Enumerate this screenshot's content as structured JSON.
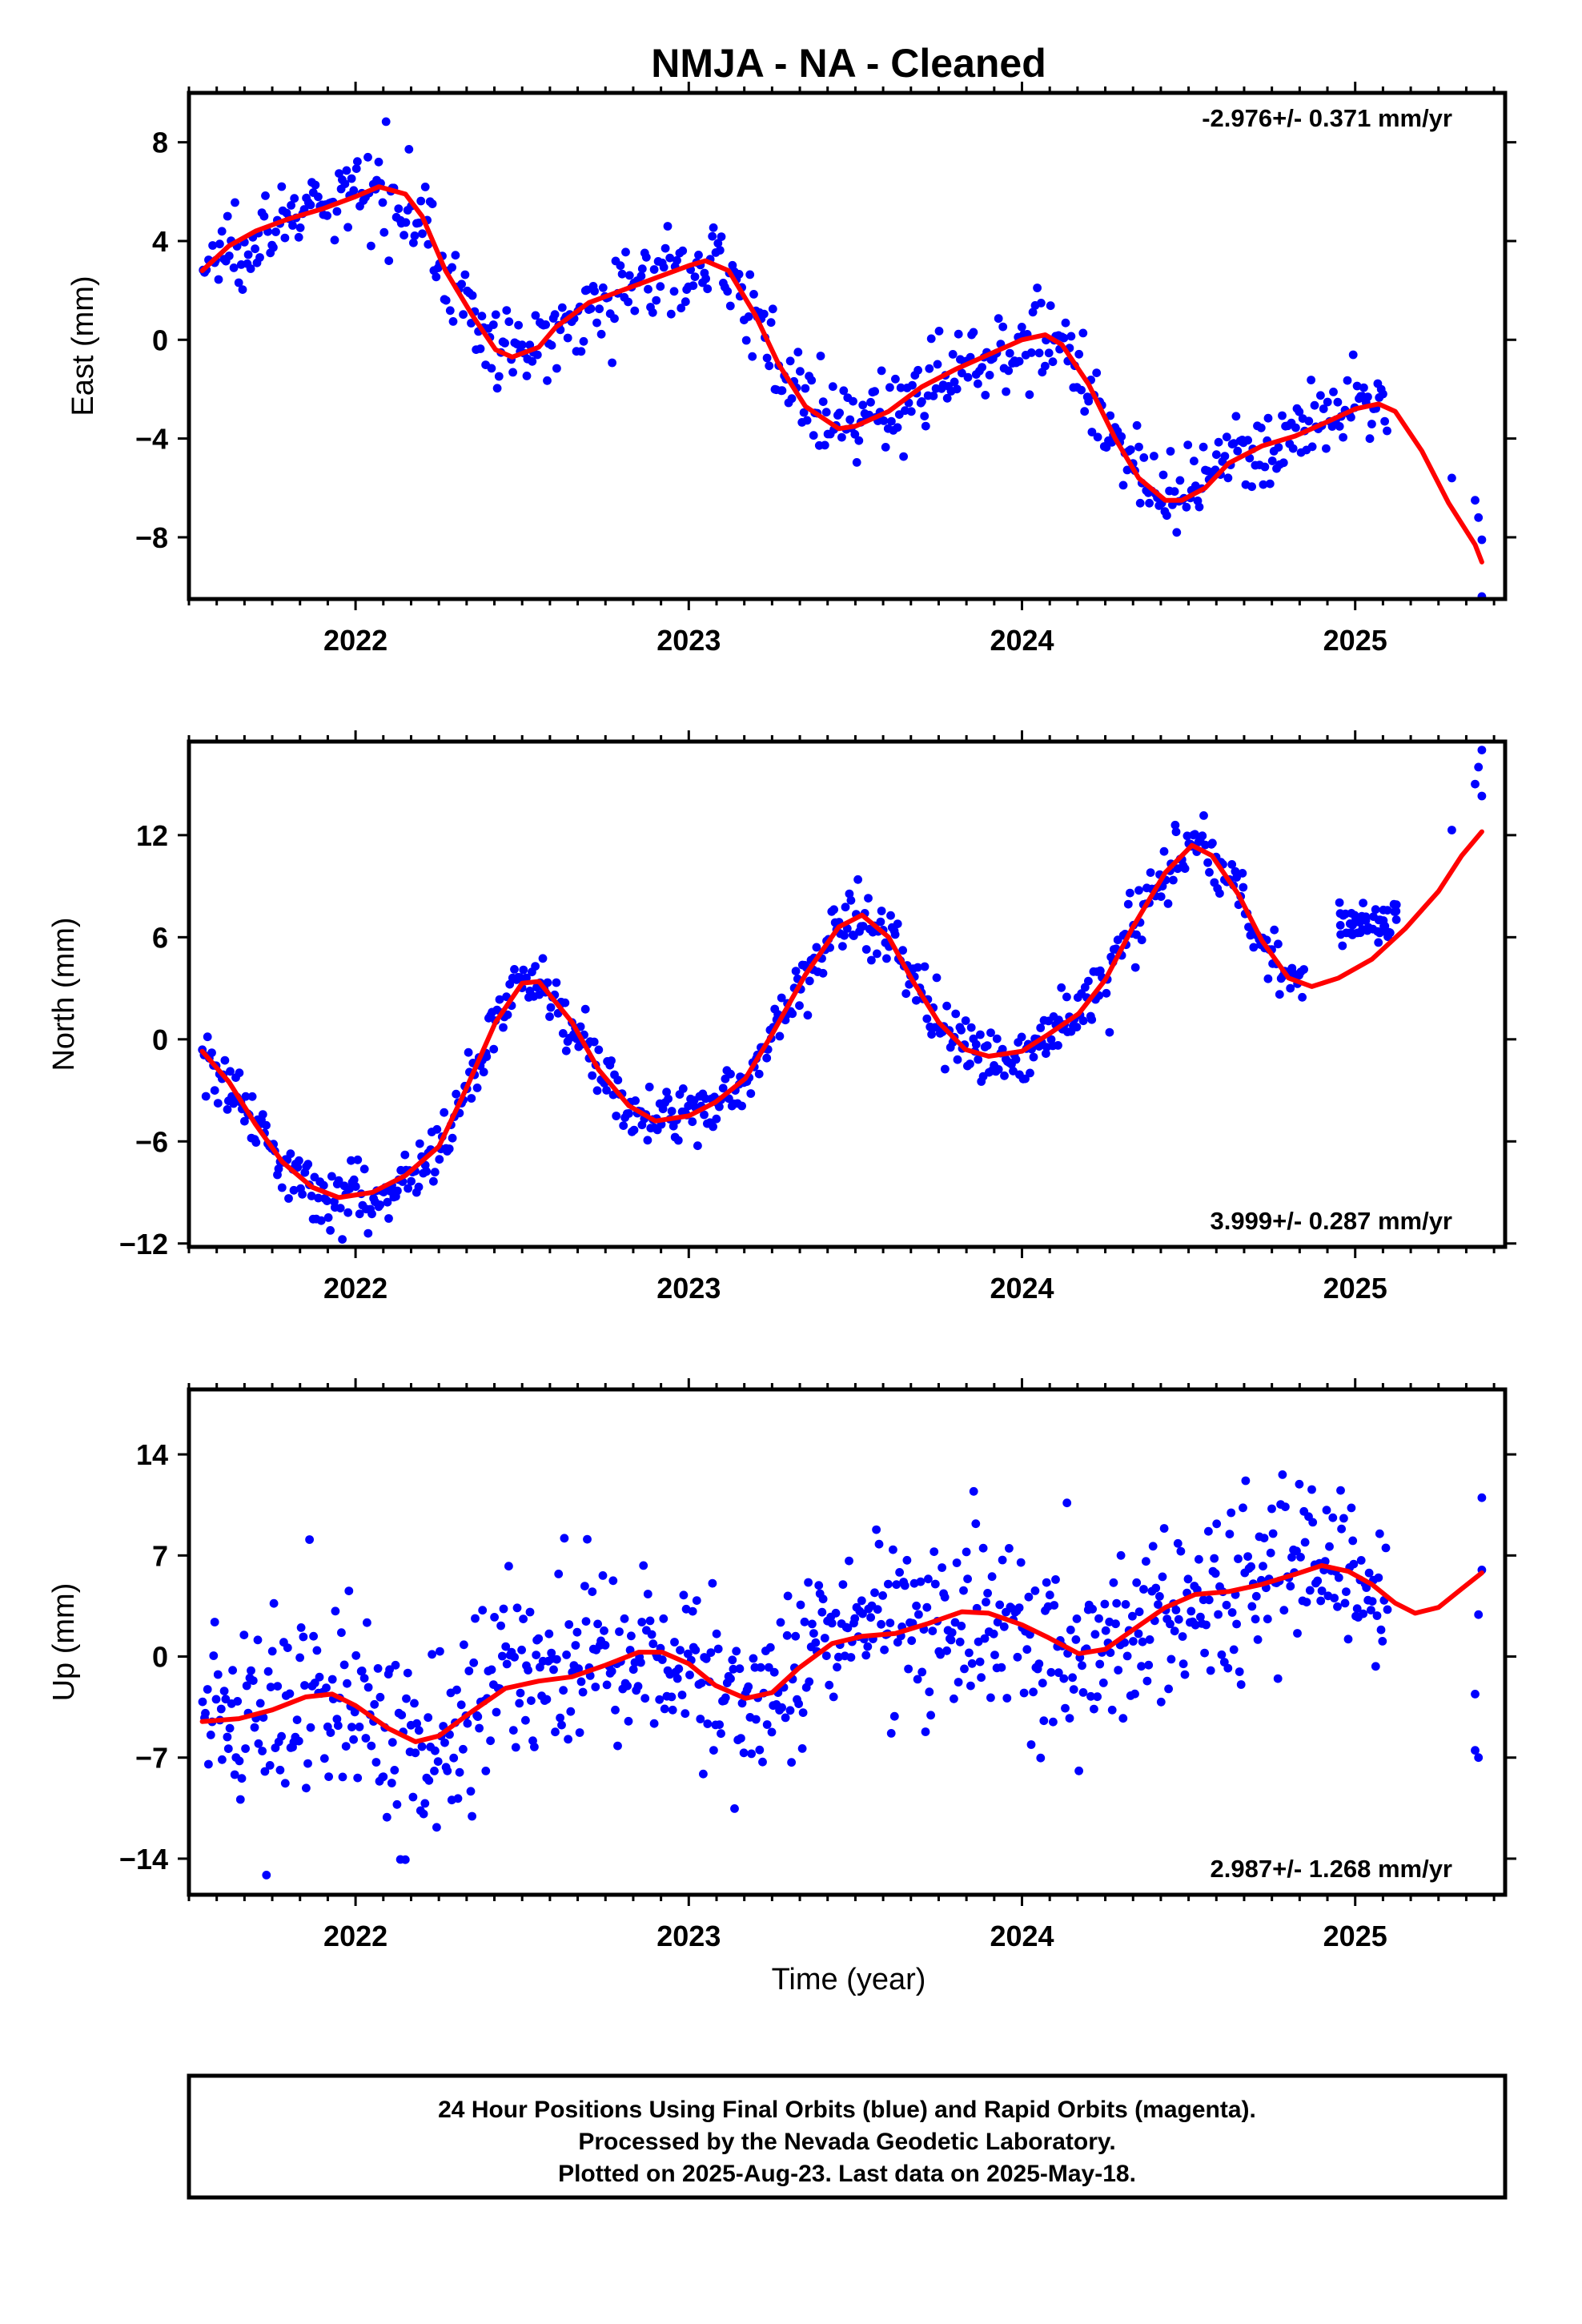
{
  "title": "NMJA  - NA - Cleaned",
  "xlabel": "Time (year)",
  "notes": [
    "24 Hour Positions Using Final Orbits (blue) and Rapid Orbits (magenta).",
    "Processed by the Nevada Geodetic Laboratory.",
    "Plotted on 2025-Aug-23. Last data on 2025-May-18."
  ],
  "colors": {
    "points": "#0000ff",
    "fit": "#ff0000",
    "frame": "#000000"
  },
  "chart_data": [
    {
      "type": "scatter",
      "ylabel": "East (mm)",
      "rate": "-2.976+/- 0.371 mm/yr",
      "xlim": [
        2021.5,
        2025.45
      ],
      "ylim": [
        -10.5,
        10
      ],
      "xticks": [
        2022,
        2023,
        2024,
        2025
      ],
      "xtick_labels": [
        "2022",
        "2023",
        "2024",
        "2025"
      ],
      "yticks": [
        8,
        4,
        0,
        -4,
        -8
      ],
      "ytick_labels": [
        "8",
        "4",
        "0",
        "−4",
        "−8"
      ],
      "fit_line": [
        [
          2021.54,
          2.8
        ],
        [
          2021.62,
          3.8
        ],
        [
          2021.7,
          4.4
        ],
        [
          2021.8,
          4.9
        ],
        [
          2021.9,
          5.3
        ],
        [
          2022.0,
          5.8
        ],
        [
          2022.07,
          6.2
        ],
        [
          2022.15,
          5.9
        ],
        [
          2022.2,
          5.0
        ],
        [
          2022.27,
          2.8
        ],
        [
          2022.35,
          1.0
        ],
        [
          2022.42,
          -0.4
        ],
        [
          2022.47,
          -0.7
        ],
        [
          2022.55,
          -0.3
        ],
        [
          2022.6,
          0.5
        ],
        [
          2022.7,
          1.5
        ],
        [
          2022.8,
          2.0
        ],
        [
          2022.9,
          2.5
        ],
        [
          2023.0,
          3.0
        ],
        [
          2023.05,
          3.2
        ],
        [
          2023.12,
          2.8
        ],
        [
          2023.2,
          1.0
        ],
        [
          2023.27,
          -1.0
        ],
        [
          2023.35,
          -2.7
        ],
        [
          2023.45,
          -3.6
        ],
        [
          2023.5,
          -3.5
        ],
        [
          2023.6,
          -2.9
        ],
        [
          2023.7,
          -1.9
        ],
        [
          2023.8,
          -1.2
        ],
        [
          2023.9,
          -0.6
        ],
        [
          2024.0,
          0.0
        ],
        [
          2024.07,
          0.2
        ],
        [
          2024.12,
          -0.2
        ],
        [
          2024.2,
          -1.8
        ],
        [
          2024.28,
          -4.0
        ],
        [
          2024.35,
          -5.6
        ],
        [
          2024.43,
          -6.5
        ],
        [
          2024.48,
          -6.5
        ],
        [
          2024.55,
          -6.0
        ],
        [
          2024.62,
          -5.0
        ],
        [
          2024.72,
          -4.3
        ],
        [
          2024.82,
          -3.9
        ],
        [
          2024.92,
          -3.3
        ],
        [
          2025.0,
          -2.8
        ],
        [
          2025.07,
          -2.6
        ],
        [
          2025.12,
          -2.9
        ],
        [
          2025.2,
          -4.5
        ],
        [
          2025.28,
          -6.6
        ],
        [
          2025.36,
          -8.3
        ],
        [
          2025.38,
          -9.0
        ]
      ],
      "scatter_model": [
        [
          2021.54,
          2.8
        ],
        [
          2021.62,
          3.8
        ],
        [
          2021.7,
          4.4
        ],
        [
          2021.8,
          4.9
        ],
        [
          2021.9,
          5.3
        ],
        [
          2022.0,
          5.8
        ],
        [
          2022.07,
          6.2
        ],
        [
          2022.15,
          5.9
        ],
        [
          2022.2,
          5.0
        ],
        [
          2022.27,
          2.8
        ],
        [
          2022.35,
          1.0
        ],
        [
          2022.42,
          -0.4
        ],
        [
          2022.47,
          -0.7
        ],
        [
          2022.55,
          -0.3
        ],
        [
          2022.6,
          0.5
        ],
        [
          2022.7,
          1.5
        ],
        [
          2022.8,
          2.0
        ],
        [
          2022.9,
          2.5
        ],
        [
          2023.0,
          3.0
        ],
        [
          2023.05,
          3.2
        ],
        [
          2023.12,
          2.8
        ],
        [
          2023.2,
          1.0
        ],
        [
          2023.27,
          -1.0
        ],
        [
          2023.35,
          -2.7
        ],
        [
          2023.45,
          -3.6
        ],
        [
          2023.5,
          -3.5
        ],
        [
          2023.6,
          -2.9
        ],
        [
          2023.7,
          -1.9
        ],
        [
          2023.8,
          -1.2
        ],
        [
          2023.9,
          -0.6
        ],
        [
          2024.0,
          0.0
        ],
        [
          2024.07,
          0.2
        ],
        [
          2024.12,
          -0.2
        ],
        [
          2024.2,
          -1.8
        ],
        [
          2024.28,
          -4.0
        ],
        [
          2024.35,
          -5.6
        ],
        [
          2024.43,
          -6.5
        ],
        [
          2024.48,
          -6.5
        ],
        [
          2024.55,
          -6.0
        ],
        [
          2024.62,
          -5.0
        ],
        [
          2024.72,
          -4.3
        ],
        [
          2024.82,
          -3.9
        ],
        [
          2024.92,
          -3.3
        ],
        [
          2025.0,
          -2.8
        ],
        [
          2025.07,
          -2.6
        ],
        [
          2025.1,
          -2.8
        ]
      ],
      "scatter_spread": 1.1,
      "data_range": [
        2021.54,
        2025.1
      ],
      "late_points": [
        [
          2025.29,
          -5.6
        ],
        [
          2025.36,
          -6.5
        ],
        [
          2025.37,
          -7.2
        ],
        [
          2025.38,
          -8.1
        ],
        [
          2025.38,
          -10.4
        ]
      ],
      "point_count": 620
    },
    {
      "type": "scatter",
      "ylabel": "North (mm)",
      "rate": "3.999+/- 0.287 mm/yr",
      "xlim": [
        2021.5,
        2025.45
      ],
      "ylim": [
        -12.2,
        17.5
      ],
      "xticks": [
        2022,
        2023,
        2024,
        2025
      ],
      "xtick_labels": [
        "2022",
        "2023",
        "2024",
        "2025"
      ],
      "yticks": [
        12,
        6,
        0,
        -6,
        -12
      ],
      "ytick_labels": [
        "12",
        "6",
        "0",
        "−6",
        "−12"
      ],
      "fit_line": [
        [
          2021.54,
          -0.7
        ],
        [
          2021.62,
          -2.5
        ],
        [
          2021.7,
          -5.0
        ],
        [
          2021.78,
          -7.2
        ],
        [
          2021.87,
          -8.7
        ],
        [
          2021.95,
          -9.3
        ],
        [
          2022.05,
          -9.0
        ],
        [
          2022.15,
          -8.0
        ],
        [
          2022.25,
          -6.3
        ],
        [
          2022.33,
          -3.0
        ],
        [
          2022.42,
          1.0
        ],
        [
          2022.5,
          3.3
        ],
        [
          2022.55,
          3.4
        ],
        [
          2022.65,
          1.0
        ],
        [
          2022.73,
          -1.8
        ],
        [
          2022.82,
          -3.9
        ],
        [
          2022.9,
          -4.8
        ],
        [
          2023.0,
          -4.5
        ],
        [
          2023.08,
          -3.7
        ],
        [
          2023.17,
          -2.3
        ],
        [
          2023.25,
          0.3
        ],
        [
          2023.35,
          3.8
        ],
        [
          2023.45,
          6.6
        ],
        [
          2023.52,
          7.3
        ],
        [
          2023.6,
          6.0
        ],
        [
          2023.67,
          3.5
        ],
        [
          2023.75,
          1.0
        ],
        [
          2023.83,
          -0.6
        ],
        [
          2023.9,
          -1.0
        ],
        [
          2024.0,
          -0.7
        ],
        [
          2024.08,
          0.3
        ],
        [
          2024.17,
          1.5
        ],
        [
          2024.25,
          3.5
        ],
        [
          2024.33,
          6.5
        ],
        [
          2024.43,
          9.8
        ],
        [
          2024.51,
          11.4
        ],
        [
          2024.57,
          10.8
        ],
        [
          2024.65,
          8.5
        ],
        [
          2024.72,
          5.8
        ],
        [
          2024.8,
          3.6
        ],
        [
          2024.87,
          3.1
        ],
        [
          2024.95,
          3.6
        ],
        [
          2025.05,
          4.7
        ],
        [
          2025.15,
          6.5
        ],
        [
          2025.25,
          8.7
        ],
        [
          2025.32,
          10.8
        ],
        [
          2025.38,
          12.2
        ]
      ],
      "scatter_model": [
        [
          2021.54,
          -0.7
        ],
        [
          2021.62,
          -2.5
        ],
        [
          2021.7,
          -5.0
        ],
        [
          2021.78,
          -7.2
        ],
        [
          2021.87,
          -8.7
        ],
        [
          2021.95,
          -9.3
        ],
        [
          2022.05,
          -9.0
        ],
        [
          2022.15,
          -8.0
        ],
        [
          2022.25,
          -6.3
        ],
        [
          2022.33,
          -3.0
        ],
        [
          2022.42,
          1.0
        ],
        [
          2022.5,
          3.3
        ],
        [
          2022.55,
          3.4
        ],
        [
          2022.65,
          1.0
        ],
        [
          2022.73,
          -1.8
        ],
        [
          2022.82,
          -3.9
        ],
        [
          2022.9,
          -4.8
        ],
        [
          2023.0,
          -4.5
        ],
        [
          2023.08,
          -3.7
        ],
        [
          2023.17,
          -2.3
        ],
        [
          2023.25,
          0.3
        ],
        [
          2023.35,
          3.8
        ],
        [
          2023.45,
          6.6
        ],
        [
          2023.52,
          7.3
        ],
        [
          2023.6,
          6.0
        ],
        [
          2023.67,
          3.5
        ],
        [
          2023.75,
          1.0
        ],
        [
          2023.83,
          -0.6
        ],
        [
          2023.9,
          -1.0
        ],
        [
          2024.0,
          -0.7
        ],
        [
          2024.08,
          0.3
        ],
        [
          2024.17,
          1.5
        ],
        [
          2024.25,
          3.5
        ],
        [
          2024.33,
          6.5
        ],
        [
          2024.43,
          9.8
        ],
        [
          2024.51,
          11.4
        ],
        [
          2024.57,
          10.8
        ],
        [
          2024.65,
          8.5
        ],
        [
          2024.72,
          5.8
        ],
        [
          2024.8,
          3.6
        ],
        [
          2024.85,
          3.4
        ]
      ],
      "scatter_spread": 1.2,
      "data_range": [
        2021.54,
        2024.85
      ],
      "late_cluster": {
        "x": [
          2024.95,
          2025.13
        ],
        "y": 7.0,
        "spread": 0.9,
        "count": 50
      },
      "late_points": [
        [
          2025.29,
          12.3
        ],
        [
          2025.36,
          15.0
        ],
        [
          2025.37,
          16.0
        ],
        [
          2025.38,
          17.0
        ],
        [
          2025.38,
          14.3
        ]
      ],
      "point_count": 640
    },
    {
      "type": "scatter",
      "ylabel": "Up (mm)",
      "rate": "2.987+/- 1.268 mm/yr",
      "xlim": [
        2021.5,
        2025.45
      ],
      "ylim": [
        -16.5,
        18.5
      ],
      "xticks": [
        2022,
        2023,
        2024,
        2025
      ],
      "xtick_labels": [
        "2022",
        "2023",
        "2024",
        "2025"
      ],
      "yticks": [
        14,
        7,
        0,
        -7,
        -14
      ],
      "ytick_labels": [
        "14",
        "7",
        "0",
        "−7",
        "−14"
      ],
      "fit_line": [
        [
          2021.54,
          -4.5
        ],
        [
          2021.65,
          -4.3
        ],
        [
          2021.75,
          -3.7
        ],
        [
          2021.85,
          -2.8
        ],
        [
          2021.93,
          -2.6
        ],
        [
          2022.0,
          -3.4
        ],
        [
          2022.1,
          -5.0
        ],
        [
          2022.18,
          -5.9
        ],
        [
          2022.25,
          -5.5
        ],
        [
          2022.35,
          -3.8
        ],
        [
          2022.45,
          -2.2
        ],
        [
          2022.55,
          -1.7
        ],
        [
          2022.65,
          -1.4
        ],
        [
          2022.75,
          -0.6
        ],
        [
          2022.85,
          0.3
        ],
        [
          2022.92,
          0.3
        ],
        [
          2023.0,
          -0.5
        ],
        [
          2023.08,
          -2.0
        ],
        [
          2023.17,
          -2.9
        ],
        [
          2023.25,
          -2.5
        ],
        [
          2023.33,
          -0.8
        ],
        [
          2023.43,
          0.9
        ],
        [
          2023.52,
          1.4
        ],
        [
          2023.62,
          1.6
        ],
        [
          2023.72,
          2.3
        ],
        [
          2023.82,
          3.1
        ],
        [
          2023.9,
          3.0
        ],
        [
          2024.0,
          2.2
        ],
        [
          2024.08,
          1.3
        ],
        [
          2024.17,
          0.2
        ],
        [
          2024.25,
          0.5
        ],
        [
          2024.33,
          1.8
        ],
        [
          2024.43,
          3.4
        ],
        [
          2024.52,
          4.3
        ],
        [
          2024.62,
          4.5
        ],
        [
          2024.72,
          5.0
        ],
        [
          2024.82,
          5.7
        ],
        [
          2024.9,
          6.3
        ],
        [
          2024.98,
          5.9
        ],
        [
          2025.05,
          5.0
        ],
        [
          2025.12,
          3.7
        ],
        [
          2025.18,
          3.0
        ],
        [
          2025.25,
          3.4
        ],
        [
          2025.32,
          4.7
        ],
        [
          2025.38,
          5.8
        ]
      ],
      "scatter_model": [
        [
          2021.54,
          -4.5
        ],
        [
          2021.65,
          -4.3
        ],
        [
          2021.75,
          -3.7
        ],
        [
          2021.85,
          -2.8
        ],
        [
          2021.93,
          -2.6
        ],
        [
          2022.0,
          -3.4
        ],
        [
          2022.1,
          -5.0
        ],
        [
          2022.18,
          -5.9
        ],
        [
          2022.25,
          -5.5
        ],
        [
          2022.35,
          -3.8
        ],
        [
          2022.45,
          -2.2
        ],
        [
          2022.55,
          -1.7
        ],
        [
          2022.65,
          -1.4
        ],
        [
          2022.75,
          -0.6
        ],
        [
          2022.85,
          0.3
        ],
        [
          2022.92,
          0.3
        ],
        [
          2023.0,
          -0.5
        ],
        [
          2023.08,
          -2.0
        ],
        [
          2023.17,
          -2.9
        ],
        [
          2023.25,
          -2.5
        ],
        [
          2023.33,
          -0.8
        ],
        [
          2023.43,
          0.9
        ],
        [
          2023.52,
          1.4
        ],
        [
          2023.62,
          1.6
        ],
        [
          2023.72,
          2.3
        ],
        [
          2023.82,
          3.1
        ],
        [
          2023.9,
          3.0
        ],
        [
          2024.0,
          2.2
        ],
        [
          2024.08,
          1.3
        ],
        [
          2024.17,
          0.2
        ],
        [
          2024.25,
          0.5
        ],
        [
          2024.33,
          1.8
        ],
        [
          2024.43,
          3.4
        ],
        [
          2024.52,
          4.3
        ],
        [
          2024.62,
          4.5
        ],
        [
          2024.72,
          5.0
        ],
        [
          2024.82,
          5.7
        ],
        [
          2024.9,
          6.3
        ],
        [
          2024.98,
          5.9
        ],
        [
          2025.05,
          5.0
        ],
        [
          2025.1,
          4.2
        ]
      ],
      "scatter_spread": 4.2,
      "data_range": [
        2021.54,
        2025.1
      ],
      "late_points": [
        [
          2025.36,
          -6.5
        ],
        [
          2025.37,
          -7.0
        ],
        [
          2025.36,
          -2.6
        ],
        [
          2025.37,
          2.9
        ],
        [
          2025.38,
          6.0
        ],
        [
          2025.38,
          11.0
        ]
      ],
      "point_count": 780
    }
  ]
}
